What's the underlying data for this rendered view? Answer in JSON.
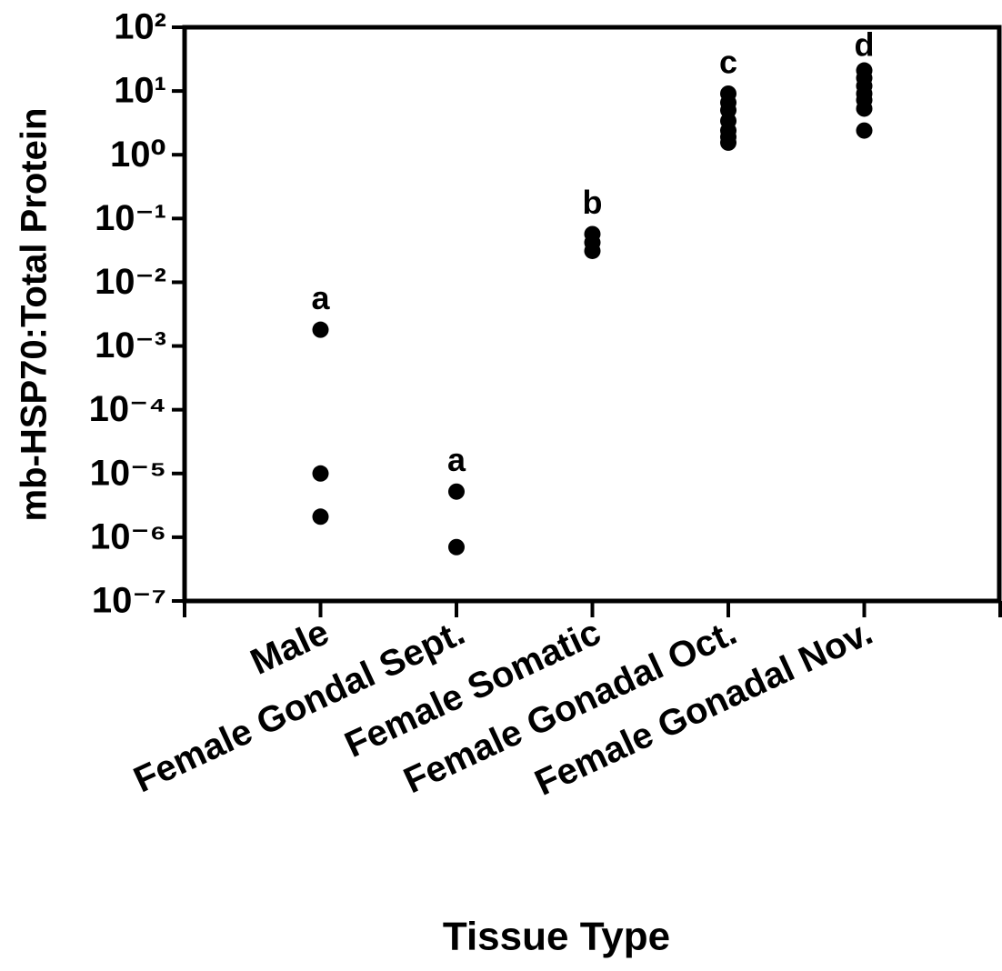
{
  "chart_data": {
    "type": "scatter",
    "y_label": "mb-HSP70:Total Protein",
    "x_label": "Tissue Type",
    "categories": [
      "Male",
      "Female Gondal Sept.",
      "Female Somatic",
      "Female Gonadal Oct.",
      "Female Gonadal Nov."
    ],
    "group_labels": [
      "a",
      "a",
      "b",
      "c",
      "d"
    ],
    "values": [
      [
        0.0018,
        1e-05,
        2.1e-06
      ],
      [
        5.2e-06,
        7e-07
      ],
      [
        0.057,
        0.042,
        0.031
      ],
      [
        9.1,
        6.6,
        5,
        3.4,
        2.4,
        1.9,
        1.55
      ],
      [
        21,
        16,
        12,
        9.1,
        7.2,
        5.3,
        2.4
      ]
    ],
    "color": "#000000",
    "yscale": "log",
    "ylim": [
      1e-07,
      100
    ],
    "yticks": [
      {
        "value": 100,
        "label": "10²"
      },
      {
        "value": 10,
        "label": "10¹"
      },
      {
        "value": 1,
        "label": "10⁰"
      },
      {
        "value": 0.1,
        "label": "10⁻¹"
      },
      {
        "value": 0.01,
        "label": "10⁻²"
      },
      {
        "value": 0.001,
        "label": "10⁻³"
      },
      {
        "value": 0.0001,
        "label": "10⁻⁴"
      },
      {
        "value": 1e-05,
        "label": "10⁻⁵"
      },
      {
        "value": 1e-06,
        "label": "10⁻⁶"
      },
      {
        "value": 1e-07,
        "label": "10⁻⁷"
      }
    ]
  }
}
